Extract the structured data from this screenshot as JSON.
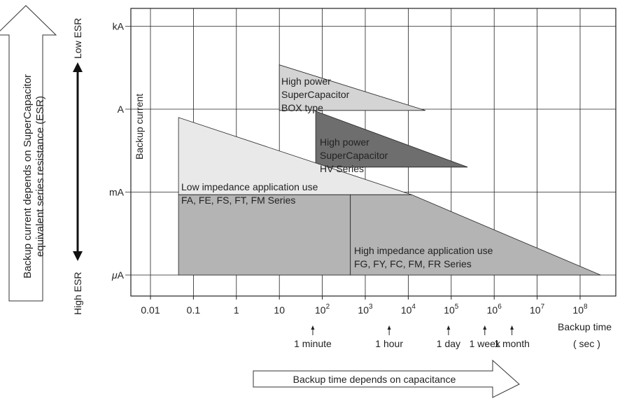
{
  "chart_data": {
    "type": "area",
    "x_scale": "log",
    "y_scale": "log",
    "xlabel": "Backup time",
    "xlabel_unit": "( sec )",
    "ylabel": "Backup current",
    "x_ticks": [
      {
        "value": 0.01,
        "label": "0.01"
      },
      {
        "value": 0.1,
        "label": "0.1"
      },
      {
        "value": 1,
        "label": "1"
      },
      {
        "value": 10,
        "label": "10"
      },
      {
        "value": 100,
        "label": "10",
        "sup": "2"
      },
      {
        "value": 1000,
        "label": "10",
        "sup": "3"
      },
      {
        "value": 10000,
        "label": "10",
        "sup": "4"
      },
      {
        "value": 100000,
        "label": "10",
        "sup": "5"
      },
      {
        "value": 1000000,
        "label": "10",
        "sup": "6"
      },
      {
        "value": 10000000,
        "label": "10",
        "sup": "7"
      },
      {
        "value": 100000000,
        "label": "10",
        "sup": "8"
      }
    ],
    "y_ticks": [
      {
        "value": 1e-06,
        "label": "μA",
        "prefix": "μ",
        "unit": "A"
      },
      {
        "value": 0.001,
        "label": "mA",
        "prefix": "m",
        "unit": "A"
      },
      {
        "value": 1,
        "label": "A",
        "prefix": "",
        "unit": "A"
      },
      {
        "value": 1000,
        "label": "kA",
        "prefix": "k",
        "unit": "A"
      }
    ],
    "time_markers": [
      {
        "label": "1 minute",
        "value": 60
      },
      {
        "label": "1 hour",
        "value": 3600
      },
      {
        "label": "1 day",
        "value": 86400
      },
      {
        "label": "1 week",
        "value": 604800
      },
      {
        "label": "1 month",
        "value": 2592000
      }
    ],
    "regions": [
      {
        "key": "box",
        "lines": [
          "High power",
          "SuperCapacitor",
          "BOX type"
        ],
        "color": "#d4d4d4",
        "polygon": [
          [
            10,
            40
          ],
          [
            10,
            0.9
          ],
          [
            25000,
            0.9
          ]
        ]
      },
      {
        "key": "hv",
        "lines": [
          "High power",
          "SuperCapacitor",
          "HV Series"
        ],
        "color": "#6e6e6e",
        "text_color": "#ffffff",
        "polygon": [
          [
            70,
            0.85
          ],
          [
            70,
            0.008
          ],
          [
            240000,
            0.008
          ]
        ]
      },
      {
        "key": "low",
        "lines": [
          "Low impedance application use",
          "FA, FE, FS, FT, FM Series"
        ],
        "color": "#e9e9e9",
        "polygon": [
          [
            0.045,
            0.5
          ],
          [
            0.045,
            0.0008
          ],
          [
            12000,
            0.0008
          ]
        ]
      },
      {
        "key": "mid",
        "lines": [],
        "color": "#b4b4b4",
        "polygon": [
          [
            0.045,
            0.0008
          ],
          [
            450,
            0.0008
          ],
          [
            450,
            1e-06
          ],
          [
            0.045,
            1e-06
          ]
        ]
      },
      {
        "key": "high",
        "lines": [
          "High impedance application use",
          "FG, FY, FC, FM, FR Series"
        ],
        "color": "#b4b4b4",
        "polygon": [
          [
            450,
            0.0008
          ],
          [
            12000,
            0.0008
          ],
          [
            300000000,
            1e-06
          ],
          [
            450,
            1e-06
          ]
        ]
      }
    ]
  },
  "left_arrow": {
    "lines": [
      "Backup current depends on SuperCapacitor",
      "equivalent series resistance (ESR)"
    ]
  },
  "esr_arrow": {
    "top": "Low ESR",
    "bottom": "High ESR"
  },
  "bottom_arrow": {
    "label": "Backup time depends on capacitance"
  }
}
